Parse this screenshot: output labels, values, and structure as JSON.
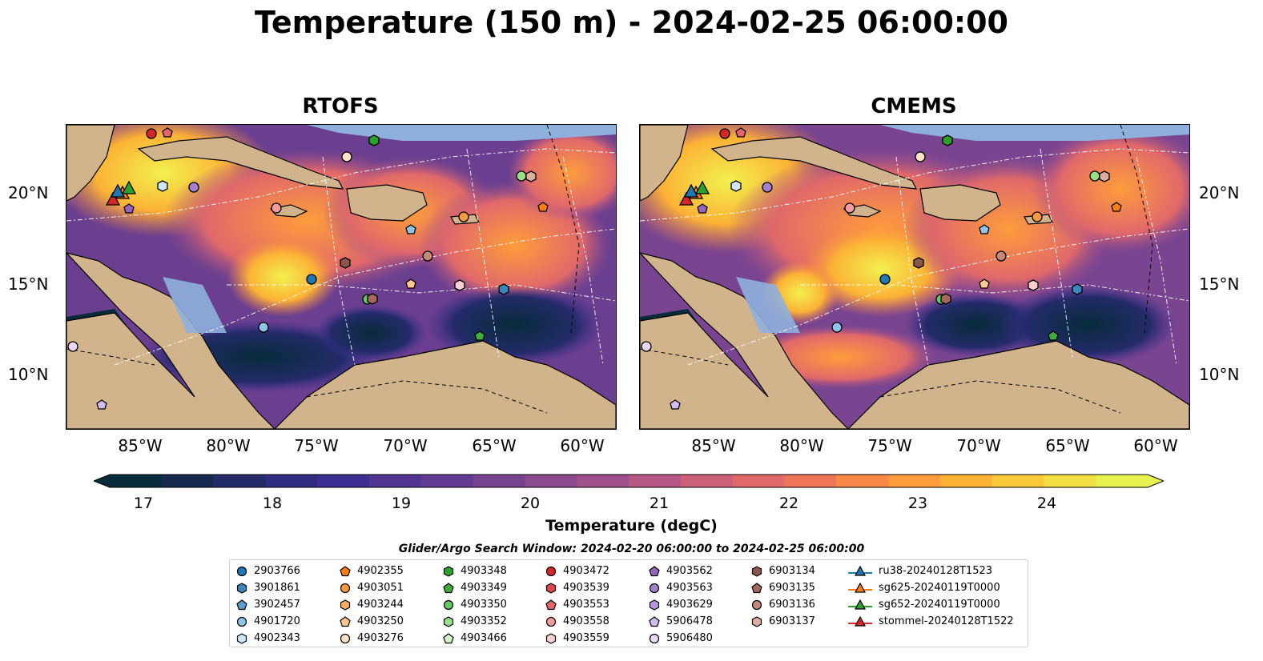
{
  "title": "Temperature (150 m) - 2024-02-25 06:00:00",
  "panels": [
    {
      "title": "RTOFS"
    },
    {
      "title": "CMEMS"
    }
  ],
  "lon_ticks": [
    "85°W",
    "80°W",
    "75°W",
    "70°W",
    "65°W",
    "60°W"
  ],
  "lat_ticks": [
    "20°N",
    "15°N",
    "10°N"
  ],
  "colorbar": {
    "label": "Temperature (degC)",
    "ticks": [
      "17",
      "18",
      "19",
      "20",
      "21",
      "22",
      "23",
      "24"
    ],
    "colors": [
      "#072b3a",
      "#15294f",
      "#232b69",
      "#302c80",
      "#3d2f91",
      "#513593",
      "#643b92",
      "#774390",
      "#8b498e",
      "#a0508a",
      "#b75785",
      "#cc6079",
      "#e0696a",
      "#ef7558",
      "#f98747",
      "#fd9d3b",
      "#fcb235",
      "#f8c939",
      "#f2df43",
      "#e8f24f"
    ]
  },
  "legend": {
    "title": "Glider/Argo Search Window: 2024-02-20 06:00:00 to 2024-02-25 06:00:00",
    "columns": [
      [
        {
          "label": "2903766",
          "marker": "circle",
          "color": "#1f77b4"
        },
        {
          "label": "3901861",
          "marker": "hexagon",
          "color": "#3a86bd"
        },
        {
          "label": "3902457",
          "marker": "pentagon",
          "color": "#5a9ed0"
        },
        {
          "label": "4901720",
          "marker": "circle",
          "color": "#8fc3e8"
        },
        {
          "label": "4902343",
          "marker": "hexagon",
          "color": "#cfe6f7"
        }
      ],
      [
        {
          "label": "4902355",
          "marker": "pentagon",
          "color": "#ff7f0e"
        },
        {
          "label": "4903051",
          "marker": "circle",
          "color": "#ff9a40"
        },
        {
          "label": "4903244",
          "marker": "hexagon",
          "color": "#ffad60"
        },
        {
          "label": "4903250",
          "marker": "pentagon",
          "color": "#ffc88f"
        },
        {
          "label": "4903276",
          "marker": "circle",
          "color": "#ffe3c7"
        }
      ],
      [
        {
          "label": "4903348",
          "marker": "hexagon",
          "color": "#2ca02c"
        },
        {
          "label": "4903349",
          "marker": "pentagon",
          "color": "#3fae3f"
        },
        {
          "label": "4903350",
          "marker": "circle",
          "color": "#63c763"
        },
        {
          "label": "4903352",
          "marker": "hexagon",
          "color": "#98df8a"
        },
        {
          "label": "4903466",
          "marker": "pentagon",
          "color": "#d4f5cc"
        }
      ],
      [
        {
          "label": "4903472",
          "marker": "circle",
          "color": "#d62728"
        },
        {
          "label": "4903539",
          "marker": "hexagon",
          "color": "#e0474a"
        },
        {
          "label": "4903553",
          "marker": "pentagon",
          "color": "#e86668"
        },
        {
          "label": "4903558",
          "marker": "circle",
          "color": "#f29c9d"
        },
        {
          "label": "4903559",
          "marker": "hexagon",
          "color": "#fbd0d0"
        }
      ],
      [
        {
          "label": "4903562",
          "marker": "pentagon",
          "color": "#9467bd"
        },
        {
          "label": "4903563",
          "marker": "circle",
          "color": "#a47fcc"
        },
        {
          "label": "4903629",
          "marker": "hexagon",
          "color": "#b898dc"
        },
        {
          "label": "5906478",
          "marker": "pentagon",
          "color": "#d3bdee"
        },
        {
          "label": "5906480",
          "marker": "circle",
          "color": "#ead8fb"
        }
      ],
      [
        {
          "label": "6903134",
          "marker": "hexagon",
          "color": "#8c564b"
        },
        {
          "label": "6903135",
          "marker": "pentagon",
          "color": "#a5685c"
        },
        {
          "label": "6903136",
          "marker": "circle",
          "color": "#c48979"
        },
        {
          "label": "6903137",
          "marker": "hexagon",
          "color": "#dfaea0"
        }
      ],
      [
        {
          "label": "ru38-20240128T1523",
          "marker": "triangle-line",
          "color": "#1f77b4"
        },
        {
          "label": "sg625-20240119T0000",
          "marker": "triangle-line",
          "color": "#ff7f0e"
        },
        {
          "label": "sg652-20240119T0000",
          "marker": "triangle-line",
          "color": "#2ca02c"
        },
        {
          "label": "stommel-20240128T1522",
          "marker": "triangle-line",
          "color": "#d62728"
        }
      ]
    ]
  }
}
